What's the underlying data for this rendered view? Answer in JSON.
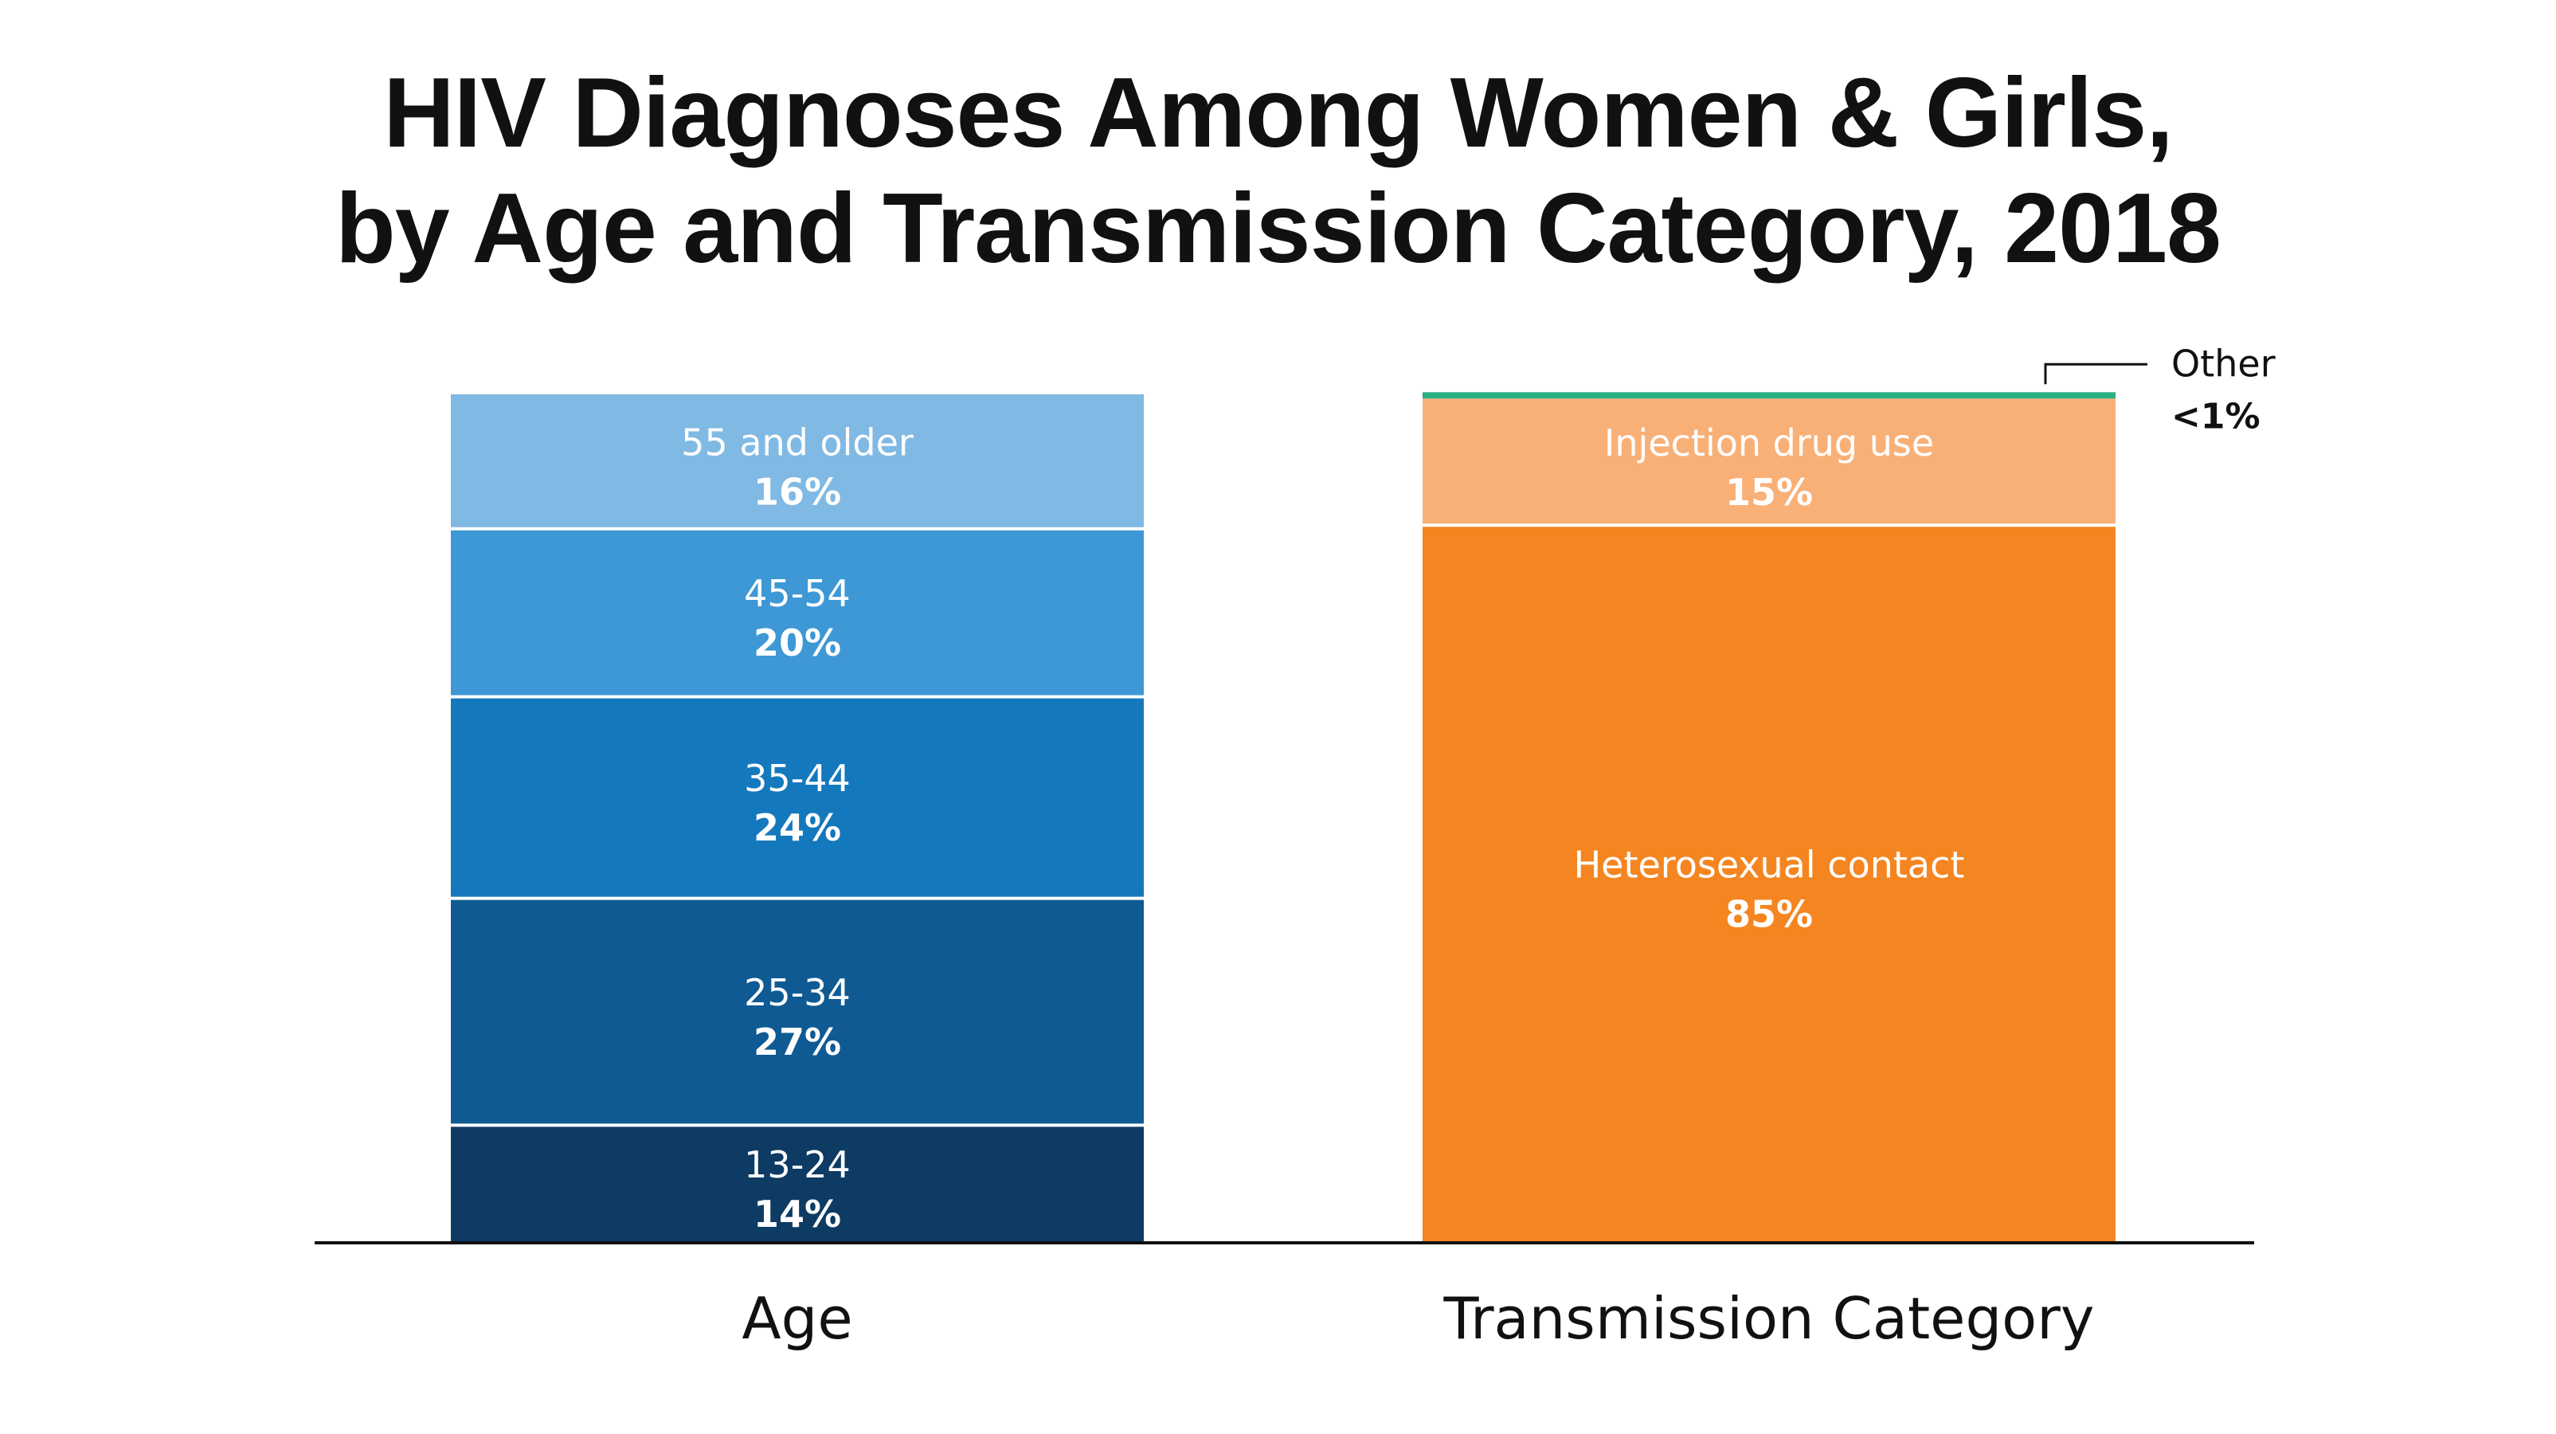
{
  "title": {
    "line1": "HIV Diagnoses Among Women & Girls,",
    "line2": "by Age and Transmission Category, 2018"
  },
  "chart_data": {
    "type": "bar",
    "stacked": true,
    "percent": true,
    "categories": [
      "Age",
      "Transmission Category"
    ],
    "ylim": [
      0,
      100
    ],
    "stacks": [
      {
        "category": "Age",
        "segments": [
          {
            "name": "13-24",
            "value": 14,
            "label": "14%",
            "color": "#0d3b63"
          },
          {
            "name": "25-34",
            "value": 27,
            "label": "27%",
            "color": "#0f5a93"
          },
          {
            "name": "35-44",
            "value": 24,
            "label": "24%",
            "color": "#1478bd"
          },
          {
            "name": "45-54",
            "value": 20,
            "label": "20%",
            "color": "#3d98d5"
          },
          {
            "name": "55 and older",
            "value": 16,
            "label": "16%",
            "color": "#80b9e3"
          }
        ]
      },
      {
        "category": "Transmission Category",
        "segments": [
          {
            "name": "Heterosexual contact",
            "value": 85,
            "label": "85%",
            "color": "#f58520"
          },
          {
            "name": "Injection drug use",
            "value": 15,
            "label": "15%",
            "color": "#f9b077"
          },
          {
            "name": "Other",
            "value": 0.5,
            "label": "<1%",
            "color": "#2bb082",
            "annotated": true
          }
        ]
      }
    ]
  }
}
